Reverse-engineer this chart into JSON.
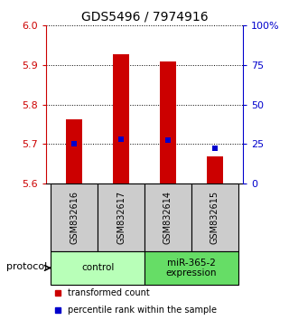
{
  "title": "GDS5496 / 7974916",
  "samples": [
    "GSM832616",
    "GSM832617",
    "GSM832614",
    "GSM832615"
  ],
  "red_values": [
    5.762,
    5.928,
    5.908,
    5.668
  ],
  "blue_values": [
    5.7,
    5.712,
    5.71,
    5.69
  ],
  "ylim_left": [
    5.6,
    6.0
  ],
  "ylim_right": [
    0,
    100
  ],
  "yticks_left": [
    5.6,
    5.7,
    5.8,
    5.9,
    6.0
  ],
  "yticks_right": [
    0,
    25,
    50,
    75,
    100
  ],
  "ytick_labels_right": [
    "0",
    "25",
    "50",
    "75",
    "100%"
  ],
  "bar_color": "#cc0000",
  "marker_color": "#0000cc",
  "bar_bottom": 5.6,
  "bar_width": 0.35,
  "protocol_groups": [
    {
      "label": "control",
      "indices": [
        0,
        1
      ],
      "color": "#b8ffb8"
    },
    {
      "label": "miR-365-2\nexpression",
      "indices": [
        2,
        3
      ],
      "color": "#66dd66"
    }
  ],
  "sample_box_color": "#cccccc",
  "legend_red": "transformed count",
  "legend_blue": "percentile rank within the sample",
  "protocol_label": "protocol",
  "bg_color": "#ffffff"
}
